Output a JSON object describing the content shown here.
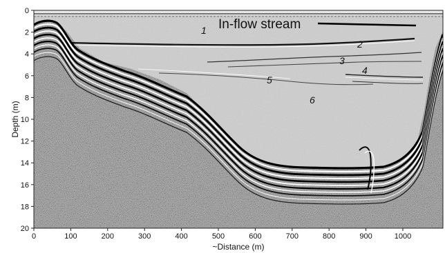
{
  "figure": {
    "y_axis_label": "Depth (m)",
    "x_axis_label": "~Distance (m)",
    "y_ticks": [
      "0",
      "2",
      "4",
      "6",
      "8",
      "10",
      "12",
      "14",
      "16",
      "18",
      "20"
    ],
    "x_ticks": [
      "0",
      "100",
      "200",
      "300",
      "400",
      "500",
      "600",
      "700",
      "800",
      "900",
      "1000"
    ],
    "annotation_title": "In-flow stream",
    "layer_labels": [
      "1",
      "2",
      "3",
      "4",
      "5",
      "6"
    ],
    "colors": {
      "background_noise": "#9a9a9a",
      "water_column": "#c4c4c4",
      "reflector_dark": "#000000",
      "reflector_light": "#ffffff"
    }
  }
}
